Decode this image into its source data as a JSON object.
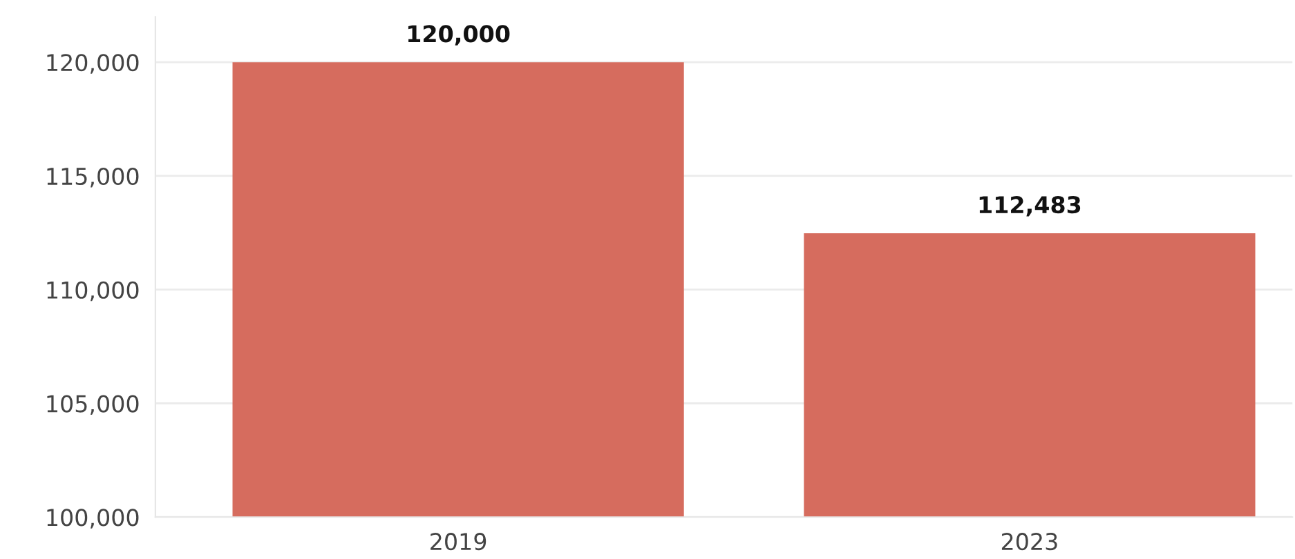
{
  "chart_data": {
    "type": "bar",
    "categories": [
      "2019",
      "2023"
    ],
    "values": [
      120000,
      112483
    ],
    "color": "#d66c5e",
    "ylim": [
      100000,
      122000
    ],
    "yticks": [
      {
        "value": 100000,
        "label": "100,000"
      },
      {
        "value": 105000,
        "label": "105,000"
      },
      {
        "value": 110000,
        "label": "110,000"
      },
      {
        "value": 115000,
        "label": "115,000"
      },
      {
        "value": 120000,
        "label": "120,000"
      }
    ],
    "grid": "y",
    "value_labels": [
      "120,000",
      "112,483"
    ]
  }
}
